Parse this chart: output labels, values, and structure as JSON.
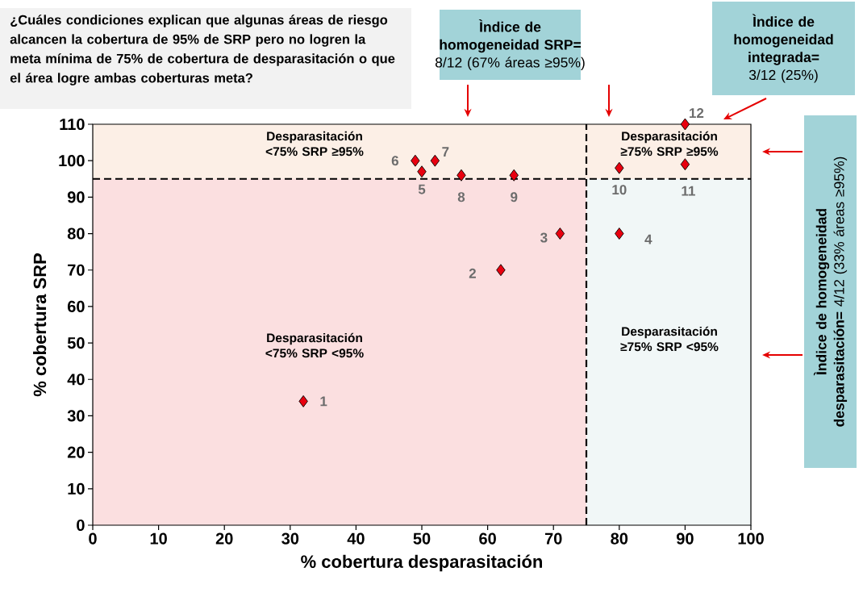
{
  "chart_data": {
    "type": "scatter",
    "title": "¿Cuáles condiciones explican que algunas áreas de riesgo alcancen la cobertura de 95% de SRP pero no logren la meta mínima de 75% de cobertura de desparasitación o que el área logre ambas coberturas meta?",
    "xlabel": "% cobertura desparasitación",
    "ylabel": "% cobertura SRP",
    "series": [
      {
        "color": "#e8000f",
        "x": [
          32,
          62,
          71,
          80,
          50,
          49,
          52,
          56,
          64,
          80,
          90,
          90
        ],
        "values": [
          34,
          70,
          80,
          80,
          97,
          100,
          100,
          96,
          96,
          98,
          99,
          110
        ]
      }
    ],
    "marker": "diamond",
    "xlim": [
      0,
      100
    ],
    "ylim": [
      0,
      110
    ],
    "xticks": [
      0,
      10,
      20,
      30,
      40,
      50,
      60,
      70,
      80,
      90,
      100
    ],
    "yticks": [
      0,
      10,
      20,
      30,
      40,
      50,
      60,
      70,
      80,
      90,
      100,
      110
    ],
    "ref_lines": [
      {
        "axis": "x",
        "value": 75,
        "line_style": "dashed",
        "color": "#000000"
      },
      {
        "axis": "y",
        "value": 95,
        "line_style": "dashed",
        "color": "#000000"
      }
    ],
    "bands": [
      {
        "axis": "x",
        "from": 0,
        "to": 75,
        "color": "#fbdfe0"
      },
      {
        "axis": "x",
        "from": 75,
        "to": 100,
        "color": "#f1f7f7"
      },
      {
        "axis": "y",
        "from": 95,
        "to": 110,
        "color": "#fcefe6"
      }
    ],
    "annotations": [
      {
        "text": "1",
        "x": 32,
        "y": 34
      },
      {
        "text": "2",
        "x": 62,
        "y": 70
      },
      {
        "text": "3",
        "x": 71,
        "y": 80
      },
      {
        "text": "4",
        "x": 80,
        "y": 80
      },
      {
        "text": "5",
        "x": 50,
        "y": 97
      },
      {
        "text": "6",
        "x": 49,
        "y": 100
      },
      {
        "text": "7",
        "x": 52,
        "y": 100
      },
      {
        "text": "8",
        "x": 56,
        "y": 96
      },
      {
        "text": "9",
        "x": 64,
        "y": 96
      },
      {
        "text": "10",
        "x": 80,
        "y": 98
      },
      {
        "text": "11",
        "x": 90,
        "y": 99
      },
      {
        "text": "12",
        "x": 90,
        "y": 110
      },
      "Desparasitación <75% SRP ≥95%",
      "Desparasitación ≥75% SRP ≥95%",
      "Desparasitación <75% SRP <95%",
      "Desparasitación ≥75% SRP <95%",
      "**Ìndice de homogeneidad SRP=** 8/12 (67% áreas ≥95%)",
      "**Ìndice de homogeneidad integrada=** 3/12 (25%)",
      "**Ìndice de homogeneidad desparasitación=** 4/12 (33% áreas ≥95%)"
    ]
  }
}
